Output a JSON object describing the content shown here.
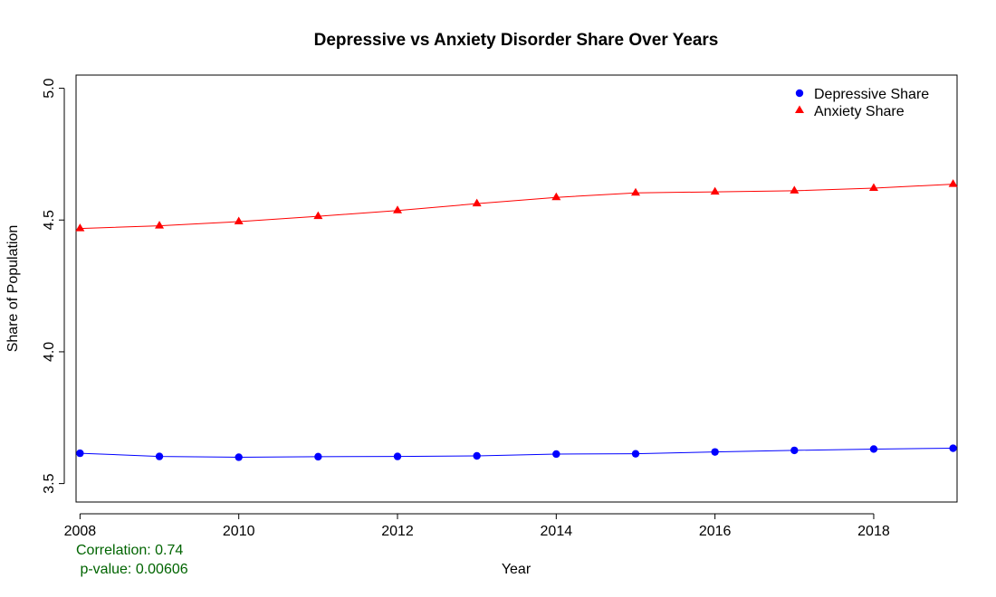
{
  "chart_data": {
    "type": "line",
    "title": "Depressive vs Anxiety Disorder Share Over Years",
    "xlabel": "Year",
    "ylabel": "Share of Population",
    "x": [
      2008,
      2009,
      2010,
      2011,
      2012,
      2013,
      2014,
      2015,
      2016,
      2017,
      2018,
      2019
    ],
    "xlim": [
      2007.95,
      2019.05
    ],
    "ylim": [
      3.43,
      5.05
    ],
    "x_ticks": [
      2008,
      2010,
      2012,
      2014,
      2016,
      2018
    ],
    "x_tick_labels": [
      "2008",
      "2010",
      "2012",
      "2014",
      "2016",
      "2018"
    ],
    "y_ticks": [
      3.5,
      4.0,
      4.5,
      5.0
    ],
    "y_tick_labels": [
      "3.5",
      "4.0",
      "4.5",
      "5.0"
    ],
    "grid": false,
    "legend_position": "top-right",
    "series": [
      {
        "name": "Depressive Share",
        "color": "#0000ff",
        "marker": "circle",
        "values": [
          3.615,
          3.603,
          3.6,
          3.602,
          3.603,
          3.605,
          3.612,
          3.613,
          3.62,
          3.626,
          3.631,
          3.634
        ]
      },
      {
        "name": "Anxiety Share",
        "color": "#ff0000",
        "marker": "triangle",
        "values": [
          4.468,
          4.478,
          4.494,
          4.514,
          4.536,
          4.562,
          4.586,
          4.603,
          4.607,
          4.611,
          4.621,
          4.636
        ]
      }
    ],
    "annotations": {
      "correlation": "Correlation: 0.74",
      "p_value": " p-value: 0.00606",
      "color": "#006400"
    }
  }
}
